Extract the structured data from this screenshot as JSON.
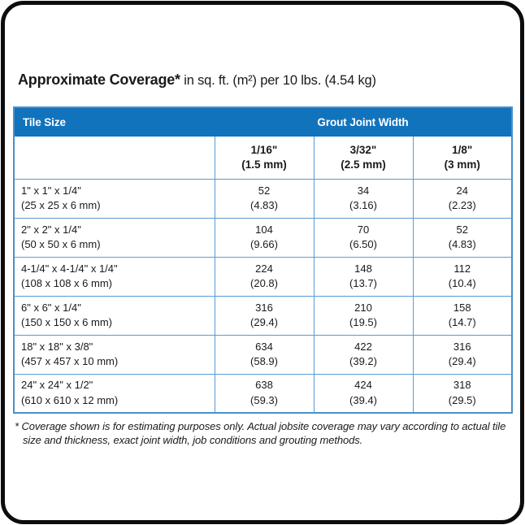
{
  "title": {
    "bold": "Approximate Coverage*",
    "rest": " in sq. ft. (m²) per 10 lbs. (4.54 kg)"
  },
  "table": {
    "header": {
      "tile_size": "Tile Size",
      "grout_joint_width": "Grout Joint Width"
    },
    "columns": [
      {
        "inch": "1/16\"",
        "mm": "(1.5 mm)"
      },
      {
        "inch": "3/32\"",
        "mm": "(2.5 mm)"
      },
      {
        "inch": "1/8\"",
        "mm": "(3 mm)"
      }
    ],
    "rows": [
      {
        "size": "1\" x 1\" x 1/4\"",
        "size_mm": "(25 x 25 x 6 mm)",
        "c1": "52",
        "c1m": "(4.83)",
        "c2": "34",
        "c2m": "(3.16)",
        "c3": "24",
        "c3m": "(2.23)"
      },
      {
        "size": "2\" x 2\" x 1/4\"",
        "size_mm": "(50 x 50 x 6 mm)",
        "c1": "104",
        "c1m": "(9.66)",
        "c2": "70",
        "c2m": "(6.50)",
        "c3": "52",
        "c3m": "(4.83)"
      },
      {
        "size": "4-1/4\" x 4-1/4\" x 1/4\"",
        "size_mm": "(108 x 108 x 6 mm)",
        "c1": "224",
        "c1m": "(20.8)",
        "c2": "148",
        "c2m": "(13.7)",
        "c3": "112",
        "c3m": "(10.4)"
      },
      {
        "size": "6\" x 6\" x 1/4\"",
        "size_mm": "(150 x 150 x 6 mm)",
        "c1": "316",
        "c1m": "(29.4)",
        "c2": "210",
        "c2m": "(19.5)",
        "c3": "158",
        "c3m": "(14.7)"
      },
      {
        "size": "18\" x 18\" x 3/8\"",
        "size_mm": "(457 x 457 x 10 mm)",
        "c1": "634",
        "c1m": "(58.9)",
        "c2": "422",
        "c2m": "(39.2)",
        "c3": "316",
        "c3m": "(29.4)"
      },
      {
        "size": "24\" x 24\" x 1/2\"",
        "size_mm": "(610 x 610 x 12 mm)",
        "c1": "638",
        "c1m": "(59.3)",
        "c2": "424",
        "c2m": "(39.4)",
        "c3": "318",
        "c3m": "(29.5)"
      }
    ]
  },
  "footnote": "* Coverage shown is for estimating purposes only. Actual jobsite coverage may vary according to actual tile size and thickness, exact joint width, job conditions and grouting methods.",
  "colors": {
    "header_bg": "#1273BD",
    "header_text": "#FFFFFF",
    "grid_line": "#5B9BD5",
    "table_border": "#4A90C9",
    "frame_border": "#0D0D0D",
    "text": "#1A1A1A"
  }
}
